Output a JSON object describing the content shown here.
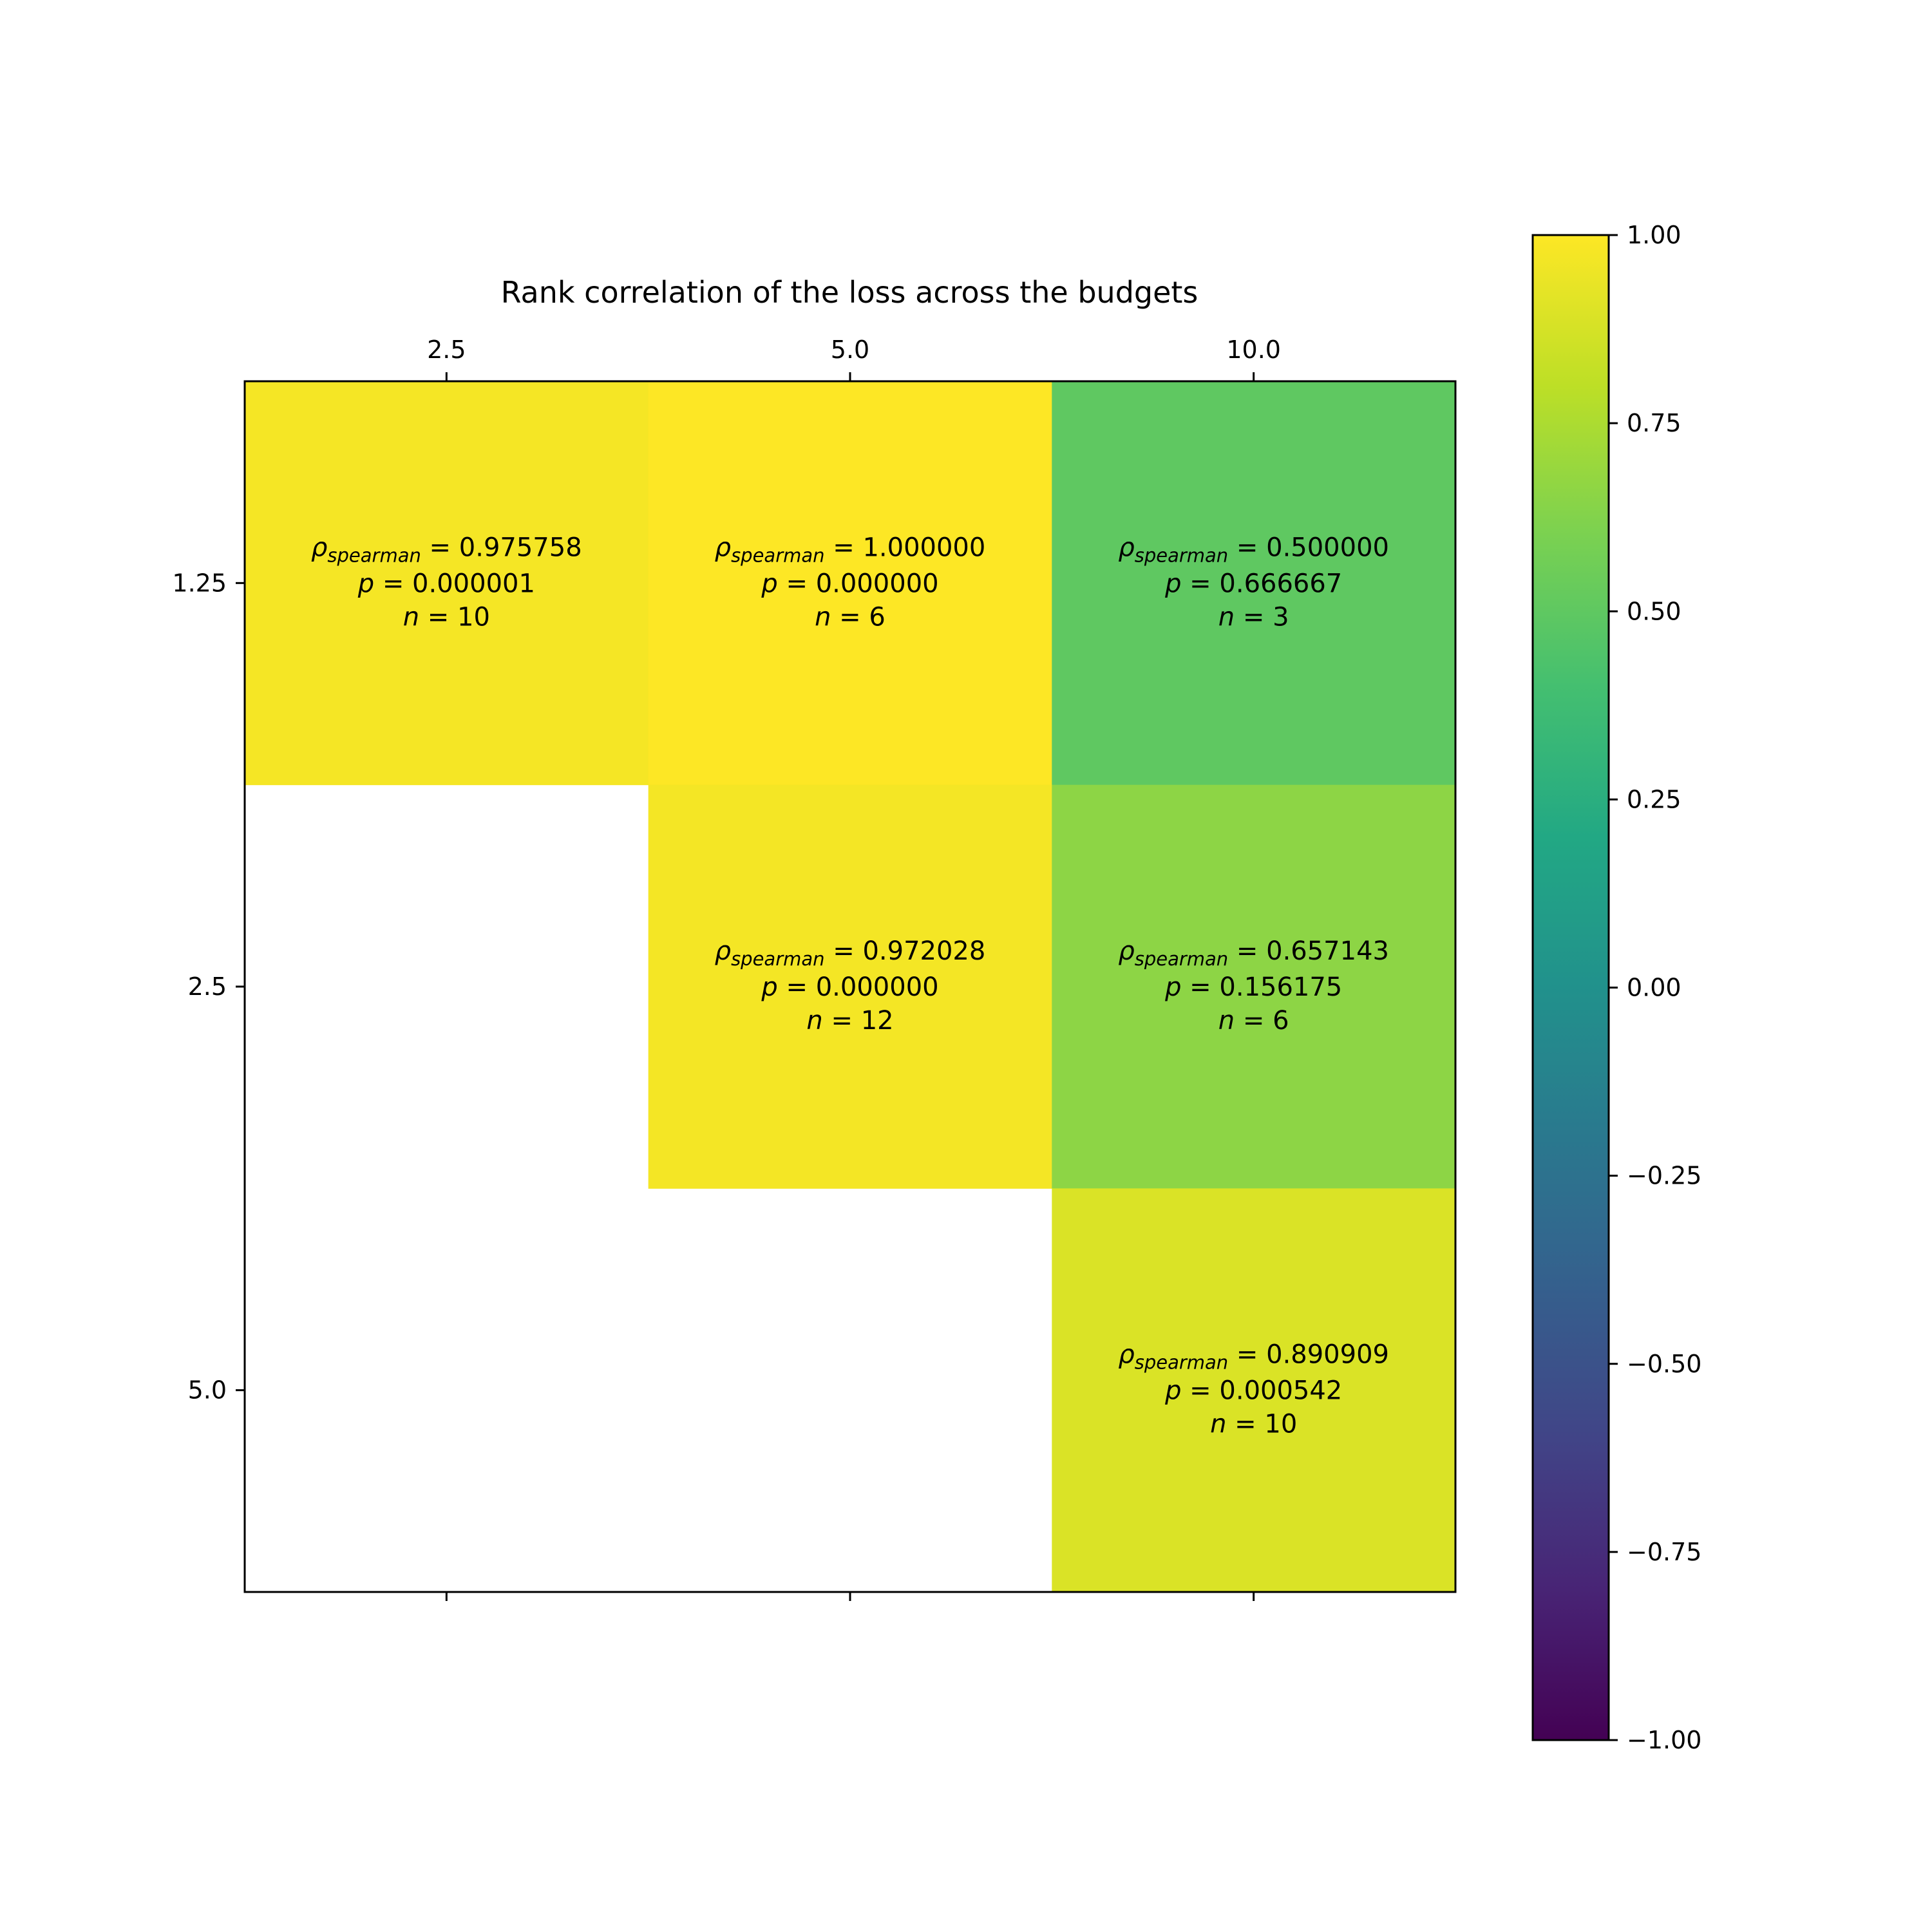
{
  "chart_data": {
    "type": "heatmap",
    "title": "Rank correlation of the loss across the budgets",
    "x_categories": [
      "2.5",
      "5.0",
      "10.0"
    ],
    "y_categories": [
      "1.25",
      "2.5",
      "5.0"
    ],
    "cells": [
      {
        "row": 0,
        "col": 0,
        "rho": 0.975758,
        "rho_text": "0.975758",
        "p_text": "0.000001",
        "n_text": "10"
      },
      {
        "row": 0,
        "col": 1,
        "rho": 1.0,
        "rho_text": "1.000000",
        "p_text": "0.000000",
        "n_text": "6"
      },
      {
        "row": 0,
        "col": 2,
        "rho": 0.5,
        "rho_text": "0.500000",
        "p_text": "0.666667",
        "n_text": "3"
      },
      {
        "row": 1,
        "col": 1,
        "rho": 0.972028,
        "rho_text": "0.972028",
        "p_text": "0.000000",
        "n_text": "12"
      },
      {
        "row": 1,
        "col": 2,
        "rho": 0.657143,
        "rho_text": "0.657143",
        "p_text": "0.156175",
        "n_text": "6"
      },
      {
        "row": 2,
        "col": 2,
        "rho": 0.890909,
        "rho_text": "0.890909",
        "p_text": "0.000542",
        "n_text": "10"
      }
    ],
    "colorbar": {
      "range": [
        -1.0,
        1.0
      ],
      "ticks": [
        1.0,
        0.75,
        0.5,
        0.25,
        0.0,
        -0.25,
        -0.5,
        -0.75,
        -1.0
      ],
      "tick_labels": [
        "1.00",
        "0.75",
        "0.50",
        "0.25",
        "0.00",
        "−0.25",
        "−0.50",
        "−0.75",
        "−1.00"
      ],
      "colormap": "viridis"
    },
    "grid": false
  }
}
